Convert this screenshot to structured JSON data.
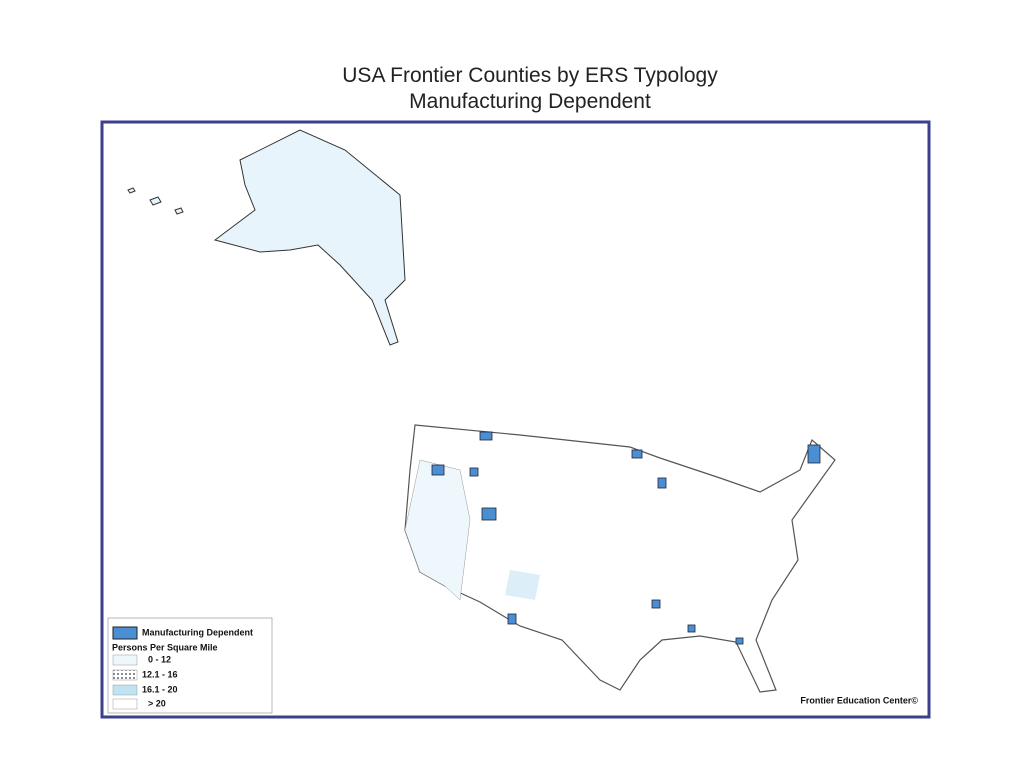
{
  "title": [
    "USA Frontier Counties by ERS Typology",
    "Manufacturing Dependent"
  ],
  "legend": {
    "category": "Manufacturing Dependent",
    "heading": "Persons Per Square Mile",
    "classes": [
      "0 - 12",
      "12.1 - 16",
      "16.1 - 20",
      "> 20"
    ]
  },
  "credit": "Frontier Education Center©"
}
